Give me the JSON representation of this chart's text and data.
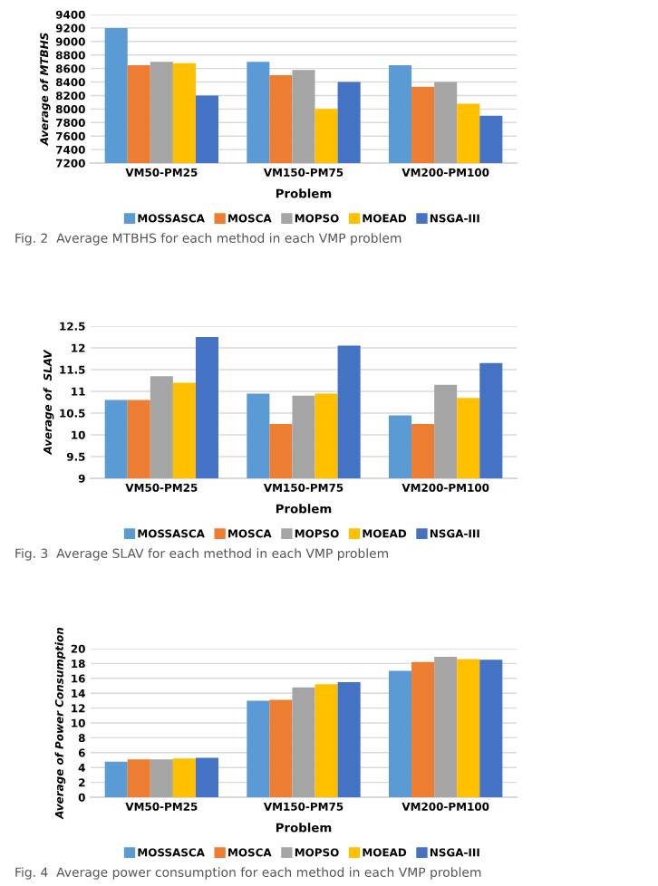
{
  "chart_data": [
    {
      "type": "bar",
      "categories": [
        "VM50-PM25",
        "VM150-PM75",
        "VM200-PM100"
      ],
      "xlabel": "Problem",
      "ylabel": "Average of MTBHS",
      "ylim": [
        7200,
        9400
      ],
      "yticks": [
        7200,
        7400,
        7600,
        7800,
        8000,
        8200,
        8400,
        8600,
        8800,
        9000,
        9200,
        9400
      ],
      "grid": "y",
      "legend": "bottom",
      "series": [
        {
          "name": "MOSSASCA",
          "color": "#5b9bd5",
          "values": [
            9200,
            8700,
            8650
          ]
        },
        {
          "name": "MOSCA",
          "color": "#ed7d31",
          "values": [
            8650,
            8500,
            8330
          ]
        },
        {
          "name": "MOPSO",
          "color": "#a5a5a5",
          "values": [
            8700,
            8580,
            8400
          ]
        },
        {
          "name": "MOEAD",
          "color": "#ffc000",
          "values": [
            8680,
            8000,
            8080
          ]
        },
        {
          "name": "NSGA-III",
          "color": "#4472c4",
          "values": [
            8200,
            8400,
            7900
          ]
        }
      ],
      "annotations": [
        "Fig. 2  Average MTBHS for each method in each VMP problem"
      ]
    },
    {
      "type": "bar",
      "categories": [
        "VM50-PM25",
        "VM150-PM75",
        "VM200-PM100"
      ],
      "xlabel": "Problem",
      "ylabel": "Average of  SLAV",
      "ylim": [
        9,
        12.5
      ],
      "yticks": [
        9,
        9.5,
        10,
        10.5,
        11,
        11.5,
        12,
        12.5
      ],
      "grid": "y",
      "legend": "bottom",
      "series": [
        {
          "name": "MOSSASCA",
          "color": "#5b9bd5",
          "values": [
            10.8,
            10.95,
            10.45
          ]
        },
        {
          "name": "MOSCA",
          "color": "#ed7d31",
          "values": [
            10.8,
            10.25,
            10.25
          ]
        },
        {
          "name": "MOPSO",
          "color": "#a5a5a5",
          "values": [
            11.35,
            10.9,
            11.15
          ]
        },
        {
          "name": "MOEAD",
          "color": "#ffc000",
          "values": [
            11.2,
            10.95,
            10.85
          ]
        },
        {
          "name": "NSGA-III",
          "color": "#4472c4",
          "values": [
            12.25,
            12.05,
            11.65
          ]
        }
      ],
      "annotations": [
        "Fig. 3  Average SLAV for each method in each VMP problem"
      ]
    },
    {
      "type": "bar",
      "categories": [
        "VM50-PM25",
        "VM150-PM75",
        "VM200-PM100"
      ],
      "xlabel": "Problem",
      "ylabel": "Average of Power Consumption",
      "ylim": [
        0,
        20
      ],
      "yticks": [
        0,
        2,
        4,
        6,
        8,
        10,
        12,
        14,
        16,
        18,
        20
      ],
      "grid": "y",
      "legend": "bottom",
      "series": [
        {
          "name": "MOSSASCA",
          "color": "#5b9bd5",
          "values": [
            4.8,
            13,
            17
          ]
        },
        {
          "name": "MOSCA",
          "color": "#ed7d31",
          "values": [
            5.1,
            13.1,
            18.2
          ]
        },
        {
          "name": "MOPSO",
          "color": "#a5a5a5",
          "values": [
            5.1,
            14.8,
            18.9
          ]
        },
        {
          "name": "MOEAD",
          "color": "#ffc000",
          "values": [
            5.2,
            15.2,
            18.6
          ]
        },
        {
          "name": "NSGA-III",
          "color": "#4472c4",
          "values": [
            5.3,
            15.5,
            18.5
          ]
        }
      ],
      "annotations": [
        "Fig. 4  Average power consumption for each method in each VMP problem"
      ]
    }
  ]
}
